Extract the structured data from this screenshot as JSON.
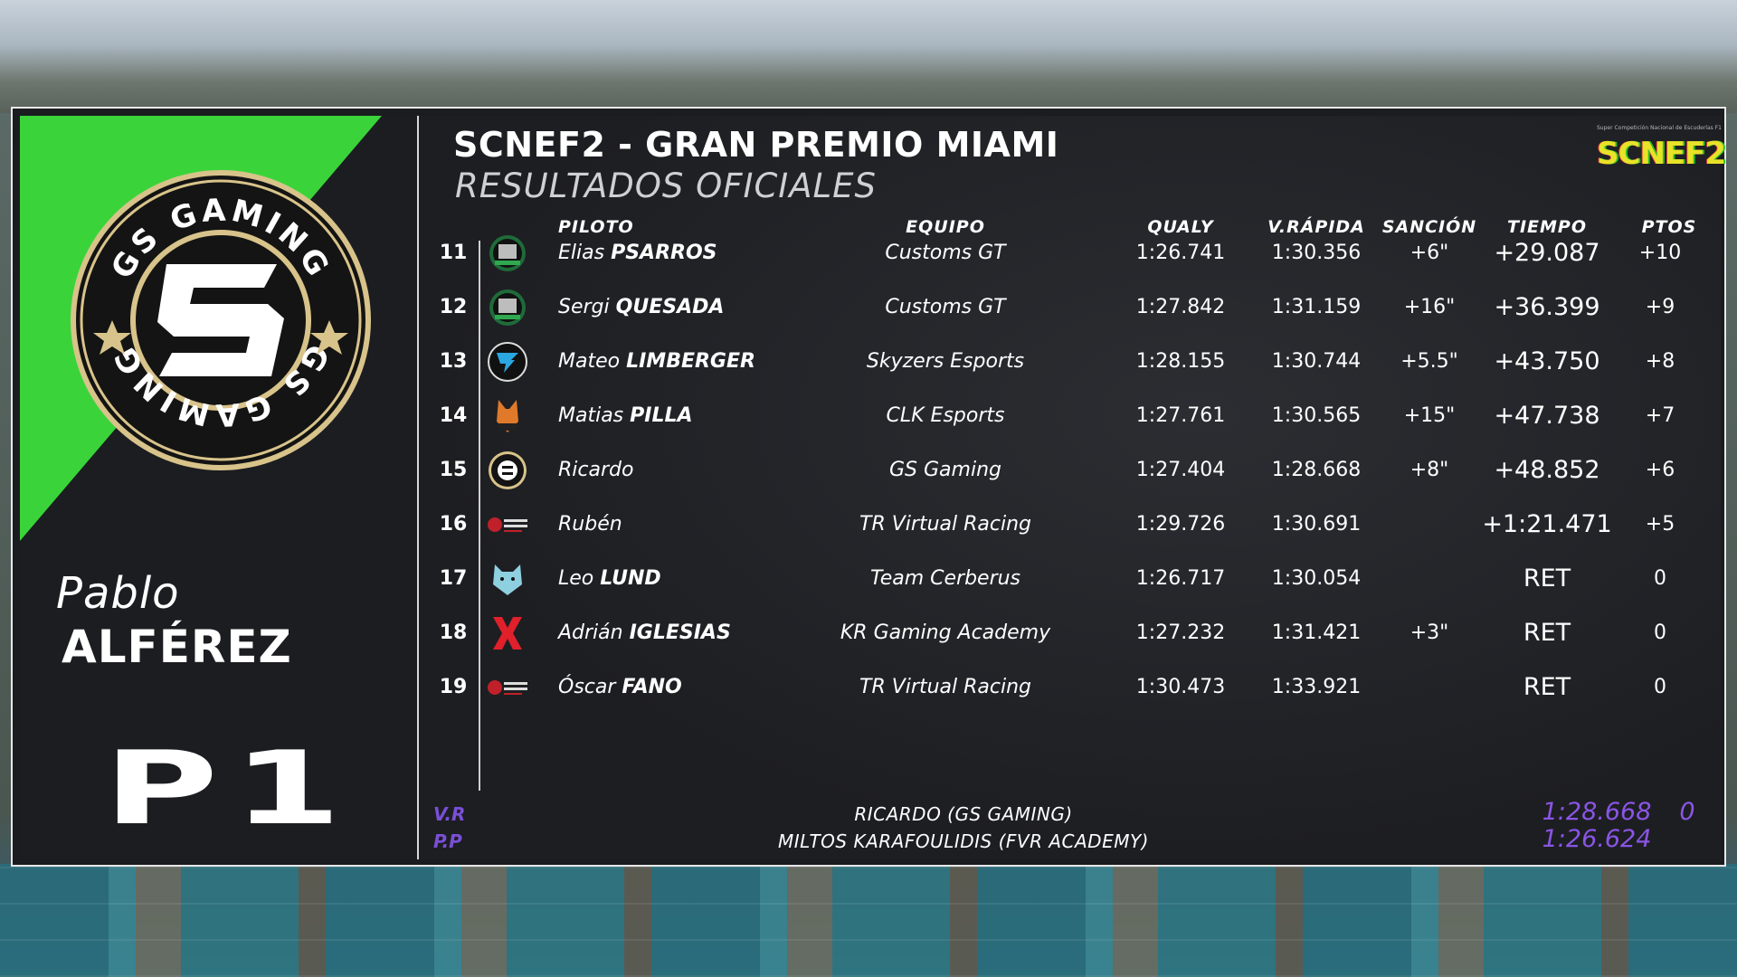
{
  "left_panel": {
    "team_logo_text_top": "GS GAMING",
    "team_logo_text_bottom": "GS GAMING",
    "driver_first_name": "Pablo",
    "driver_last_name": "ALFÉREZ",
    "position": "P1",
    "colors": {
      "accent": "#3ad43a",
      "panel": "#1c1d21",
      "logo_ring": "#d8c38a"
    }
  },
  "header": {
    "title": "SCNEF2 - GRAN PREMIO MIAMI",
    "subtitle": "RESULTADOS OFICIALES",
    "brand_name": "SCNEF2",
    "brand_tagline": "Super Competición Nacional de Escuderías F1"
  },
  "columns": {
    "driver": "PILOTO",
    "team": "EQUIPO",
    "qualy": "QUALY",
    "fastest_lap": "V.RÁPIDA",
    "penalty": "SANCIÓN",
    "time": "TIEMPO",
    "points": "PTOS"
  },
  "rows": [
    {
      "pos": "11",
      "first": "Elias",
      "last": "PSARROS",
      "team": "Customs GT",
      "qualy": "1:26.741",
      "fastest": "1:30.356",
      "penalty": "+6\"",
      "time": "+29.087",
      "points": "+10",
      "logo": "customs-gt-icon"
    },
    {
      "pos": "12",
      "first": "Sergi",
      "last": "QUESADA",
      "team": "Customs GT",
      "qualy": "1:27.842",
      "fastest": "1:31.159",
      "penalty": "+16\"",
      "time": "+36.399",
      "points": "+9",
      "logo": "customs-gt-icon"
    },
    {
      "pos": "13",
      "first": "Mateo",
      "last": "LIMBERGER",
      "team": "Skyzers Esports",
      "qualy": "1:28.155",
      "fastest": "1:30.744",
      "penalty": "+5.5\"",
      "time": "+43.750",
      "points": "+8",
      "logo": "skyzers-icon"
    },
    {
      "pos": "14",
      "first": "Matias",
      "last": "PILLA",
      "team": "CLK Esports",
      "qualy": "1:27.761",
      "fastest": "1:30.565",
      "penalty": "+15\"",
      "time": "+47.738",
      "points": "+7",
      "logo": "clk-fox-icon"
    },
    {
      "pos": "15",
      "first": "Ricardo",
      "last": "",
      "team": "GS Gaming",
      "qualy": "1:27.404",
      "fastest": "1:28.668",
      "penalty": "+8\"",
      "time": "+48.852",
      "points": "+6",
      "logo": "gs-gaming-icon"
    },
    {
      "pos": "16",
      "first": "Rubén",
      "last": "",
      "team": "TR Virtual Racing",
      "qualy": "1:29.726",
      "fastest": "1:30.691",
      "penalty": "",
      "time": "+1:21.471",
      "points": "+5",
      "logo": "tr-virtual-racing-icon"
    },
    {
      "pos": "17",
      "first": "Leo",
      "last": "LUND",
      "team": "Team Cerberus",
      "qualy": "1:26.717",
      "fastest": "1:30.054",
      "penalty": "",
      "time": "RET",
      "points": "0",
      "logo": "cerberus-wolf-icon"
    },
    {
      "pos": "18",
      "first": "Adrián",
      "last": "IGLESIAS",
      "team": "KR Gaming Academy",
      "qualy": "1:27.232",
      "fastest": "1:31.421",
      "penalty": "+3\"",
      "time": "RET",
      "points": "0",
      "logo": "kr-gaming-icon"
    },
    {
      "pos": "19",
      "first": "Óscar",
      "last": "FANO",
      "team": "TR Virtual Racing",
      "qualy": "1:30.473",
      "fastest": "1:33.921",
      "penalty": "",
      "time": "RET",
      "points": "0",
      "logo": "tr-virtual-racing-icon"
    }
  ],
  "footer": {
    "fastest_lap_label": "V.R",
    "fastest_lap_holder": "RICARDO (GS GAMING)",
    "fastest_lap_time": "1:28.668",
    "fastest_lap_points": "0",
    "pole_label": "P.P",
    "pole_holder": "MILTOS KARAFOULIDIS (FVR ACADEMY)",
    "pole_time": "1:26.624",
    "colors": {
      "purple": "#8a55e6"
    }
  }
}
